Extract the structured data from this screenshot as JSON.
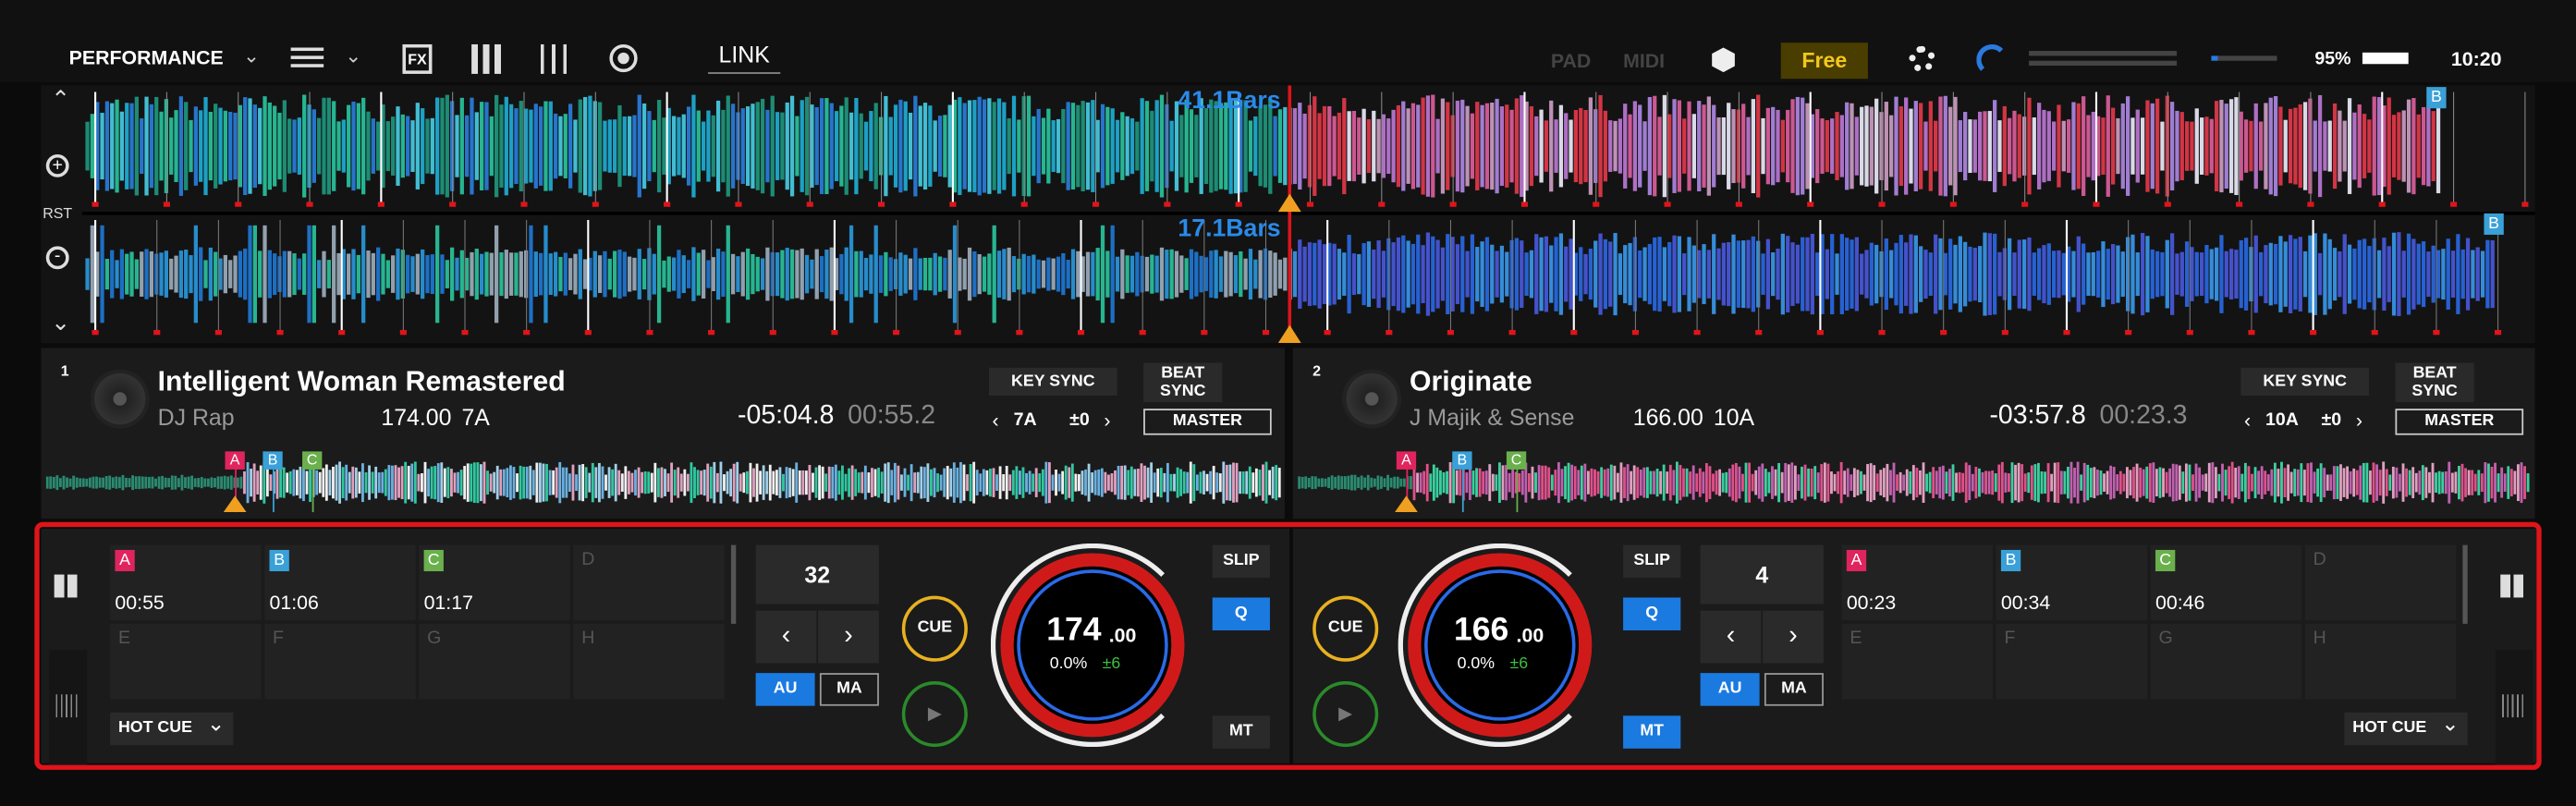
{
  "toolbar": {
    "mode": "PERFORMANCE",
    "fx": "FX",
    "link": "LINK",
    "pad": "PAD",
    "midi": "MIDI",
    "free": "Free",
    "zoom": "95%",
    "clock": "10:20"
  },
  "waveforms": {
    "top_bars": "41.1Bars",
    "bottom_bars": "17.1Bars",
    "rst": "RST",
    "top_marker": "B",
    "bottom_marker": "B"
  },
  "decks": [
    {
      "number": "1",
      "title": "Intelligent Woman Remastered",
      "artist": "DJ Rap",
      "bpm": "174.00",
      "key": "7A",
      "remaining": "-05:04.8",
      "elapsed": "00:55.2",
      "key_sync": "KEY SYNC",
      "sync_key": "7A",
      "sync_offset": "±0",
      "beat_sync": "BEAT SYNC",
      "master": "MASTER",
      "overview_cues": [
        "A",
        "B",
        "C"
      ],
      "pads": [
        {
          "label": "A",
          "time": "00:55"
        },
        {
          "label": "B",
          "time": "01:06"
        },
        {
          "label": "C",
          "time": "01:17"
        },
        {
          "label": "D"
        },
        {
          "label": "E"
        },
        {
          "label": "F"
        },
        {
          "label": "G"
        },
        {
          "label": "H"
        }
      ],
      "hot_cue": "HOT CUE",
      "loop_size": "32",
      "au": "AU",
      "ma": "MA",
      "cue": "CUE",
      "jog_bpm": "174",
      "jog_bpm_decimals": ".00",
      "pitch": "0.0%",
      "range": "±6",
      "slip": "SLIP",
      "q": "Q",
      "mt": "MT"
    },
    {
      "number": "2",
      "title": "Originate",
      "artist": "J Majik & Sense",
      "bpm": "166.00",
      "key": "10A",
      "remaining": "-03:57.8",
      "elapsed": "00:23.3",
      "key_sync": "KEY SYNC",
      "sync_key": "10A",
      "sync_offset": "±0",
      "beat_sync": "BEAT SYNC",
      "master": "MASTER",
      "overview_cues": [
        "A",
        "B",
        "C"
      ],
      "pads": [
        {
          "label": "A",
          "time": "00:23"
        },
        {
          "label": "B",
          "time": "00:34"
        },
        {
          "label": "C",
          "time": "00:46"
        },
        {
          "label": "D"
        },
        {
          "label": "E"
        },
        {
          "label": "F"
        },
        {
          "label": "G"
        },
        {
          "label": "H"
        }
      ],
      "hot_cue": "HOT CUE",
      "loop_size": "4",
      "au": "AU",
      "ma": "MA",
      "cue": "CUE",
      "jog_bpm": "166",
      "jog_bpm_decimals": ".00",
      "pitch": "0.0%",
      "range": "±6",
      "slip": "SLIP",
      "q": "Q",
      "mt": "MT"
    }
  ]
}
